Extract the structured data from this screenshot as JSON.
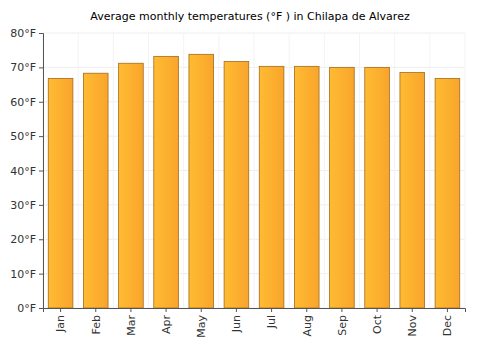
{
  "chart_data": {
    "type": "bar",
    "title": "Average monthly temperatures (°F ) in Chilapa de Alvarez",
    "categories": [
      "Jan",
      "Feb",
      "Mar",
      "Apr",
      "May",
      "Jun",
      "Jul",
      "Aug",
      "Sep",
      "Oct",
      "Nov",
      "Dec"
    ],
    "values": [
      66.8,
      68.3,
      71.2,
      73.2,
      73.8,
      71.7,
      70.3,
      70.3,
      70.0,
      70.0,
      68.5,
      66.8
    ],
    "color": "#f9a52c",
    "ylim": [
      0,
      80
    ],
    "yticks": [
      {
        "value": 0,
        "label": "0°F"
      },
      {
        "value": 10,
        "label": "10°F"
      },
      {
        "value": 20,
        "label": "20°F"
      },
      {
        "value": 30,
        "label": "30°F"
      },
      {
        "value": 40,
        "label": "40°F"
      },
      {
        "value": 50,
        "label": "50°F"
      },
      {
        "value": 60,
        "label": "60°F"
      },
      {
        "value": 70,
        "label": "70°F"
      },
      {
        "value": 80,
        "label": "80°F"
      }
    ],
    "grid": true
  }
}
